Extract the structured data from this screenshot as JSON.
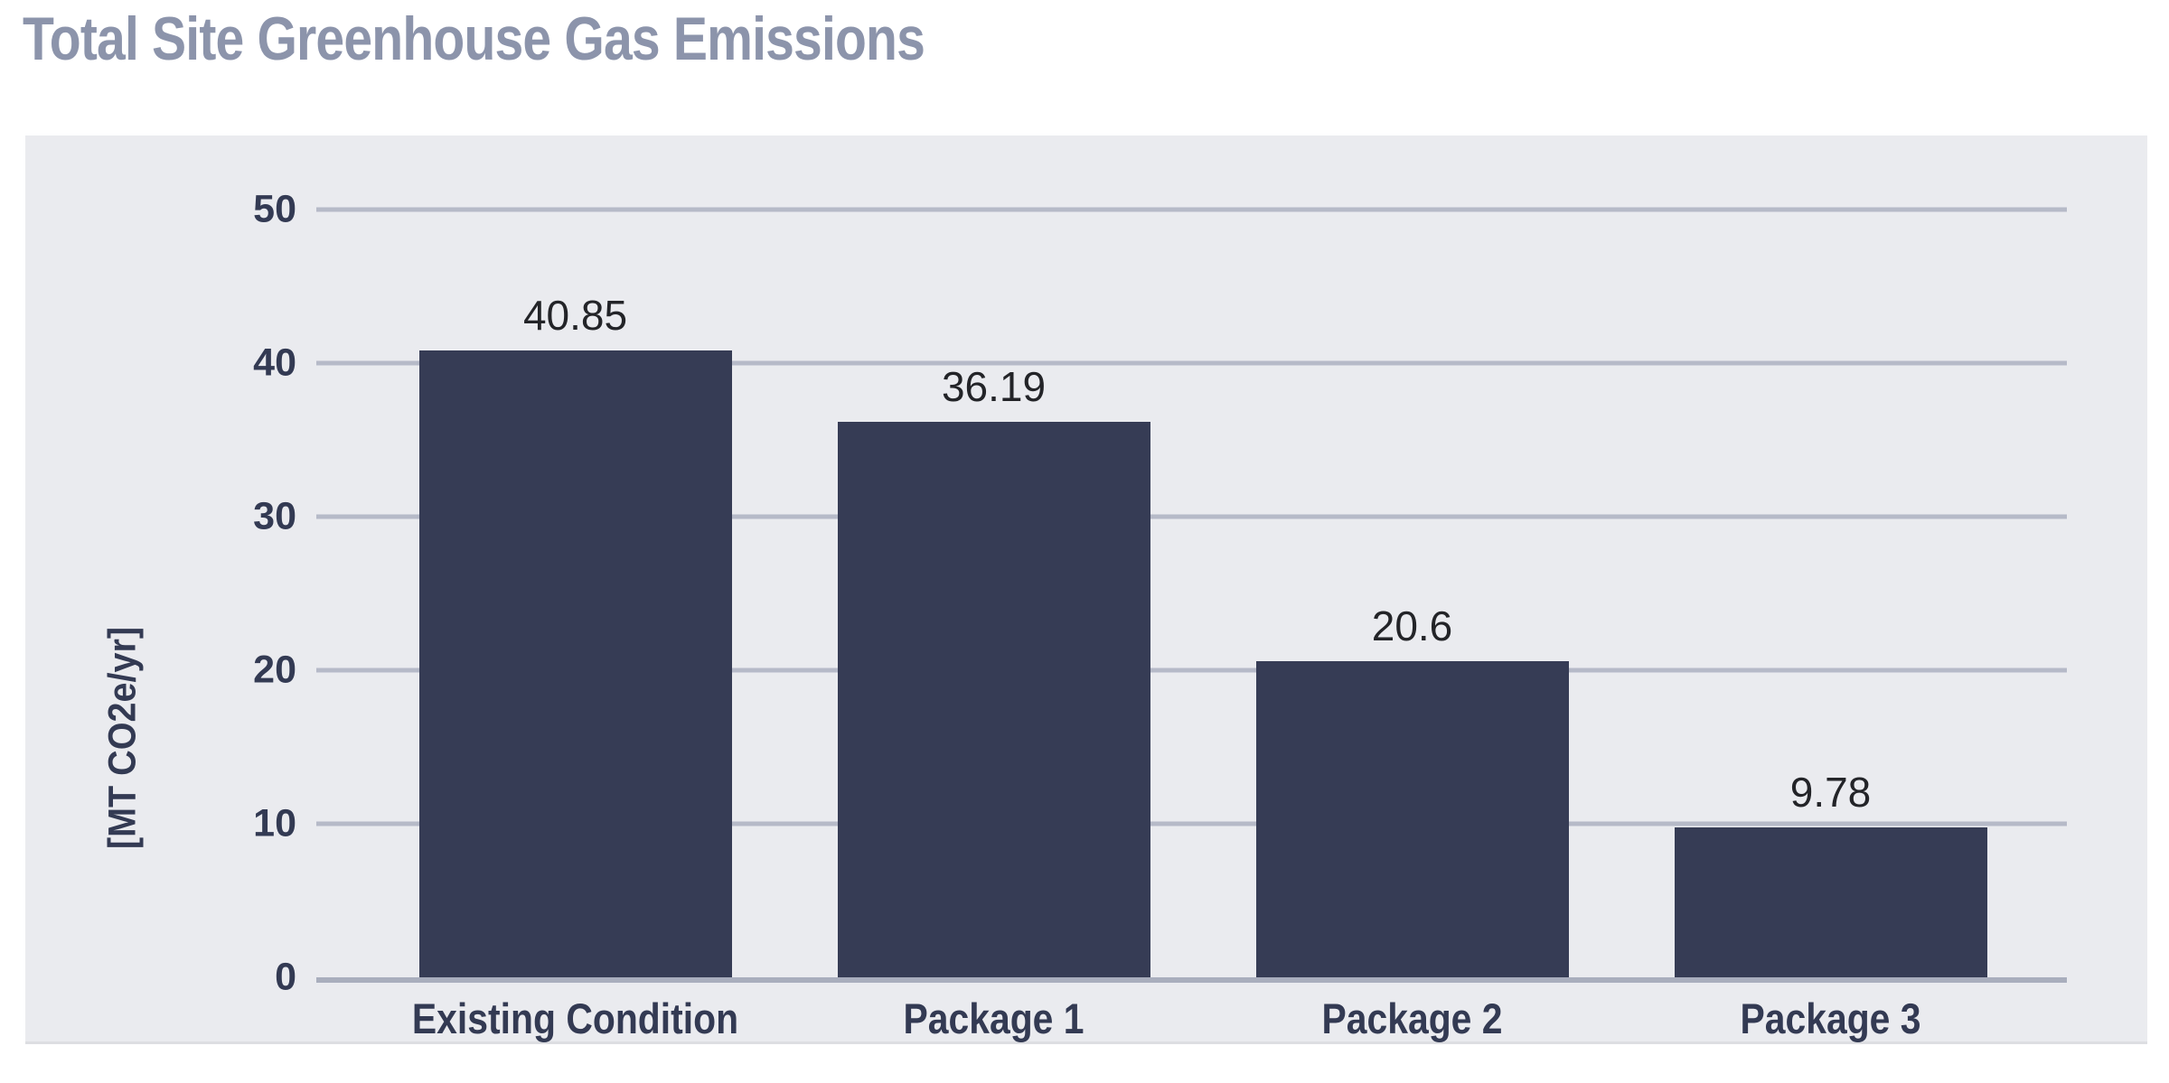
{
  "title": "Total Site Greenhouse Gas Emissions",
  "chart_data": {
    "type": "bar",
    "title": "Total Site Greenhouse Gas Emissions",
    "categories": [
      "Existing Condition",
      "Package 1",
      "Package 2",
      "Package 3"
    ],
    "values": [
      40.85,
      36.19,
      20.6,
      9.78
    ],
    "value_labels": [
      "40.85",
      "36.19",
      "20.6",
      "9.78"
    ],
    "xlabel": "",
    "ylabel": "[MT CO2e/yr]",
    "ylim": [
      0,
      50
    ],
    "yticks": [
      0,
      10,
      20,
      30,
      40,
      50
    ],
    "grid": "horizontal-only",
    "legend": "none",
    "colors": {
      "bar": "#363C55",
      "title_text": "#8C94AB",
      "axis_text": "#333A53",
      "value_label_text": "#232428",
      "plot_background": "#EAEBEF",
      "gridline": "#B6BAC8",
      "axis_line": "#A9AEBD",
      "page_background": "#FFFFFF"
    }
  }
}
